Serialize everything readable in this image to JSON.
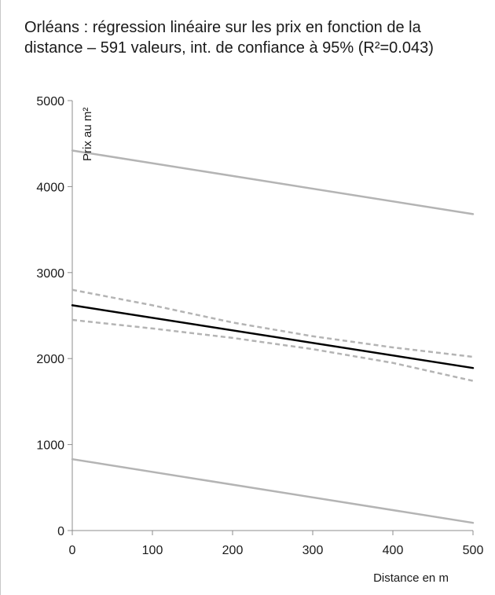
{
  "chart_data": {
    "type": "line",
    "title_line1": "Orléans : régression linéaire sur les prix en fonction de la",
    "title_line2": "distance – 591 valeurs, int. de confiance à 95%  (R²=0.043)",
    "xlabel": "Distance en m",
    "ylabel": "Prix au m²",
    "xlim": [
      0,
      500
    ],
    "ylim": [
      0,
      5000
    ],
    "x_ticks": [
      0,
      100,
      200,
      300,
      400,
      500
    ],
    "y_ticks": [
      0,
      1000,
      2000,
      3000,
      4000,
      5000
    ],
    "grid": false,
    "legend": "none",
    "series": [
      {
        "style": "solid-black",
        "color": "#000000",
        "x": [
          0,
          500
        ],
        "y": [
          2620,
          1890
        ]
      },
      {
        "style": "solid-gray",
        "color": "#b4b4b4",
        "x": [
          0,
          500
        ],
        "y": [
          4420,
          3680
        ]
      },
      {
        "style": "solid-gray",
        "color": "#b4b4b4",
        "x": [
          0,
          500
        ],
        "y": [
          830,
          90
        ]
      },
      {
        "style": "dashed-gray",
        "color": "#b4b4b4",
        "x": [
          0,
          100,
          200,
          300,
          400,
          500
        ],
        "y": [
          2800,
          2620,
          2420,
          2260,
          2130,
          2020
        ]
      },
      {
        "style": "dashed-gray",
        "color": "#b4b4b4",
        "x": [
          0,
          100,
          200,
          300,
          400,
          500
        ],
        "y": [
          2450,
          2350,
          2240,
          2110,
          1950,
          1740
        ]
      }
    ]
  }
}
